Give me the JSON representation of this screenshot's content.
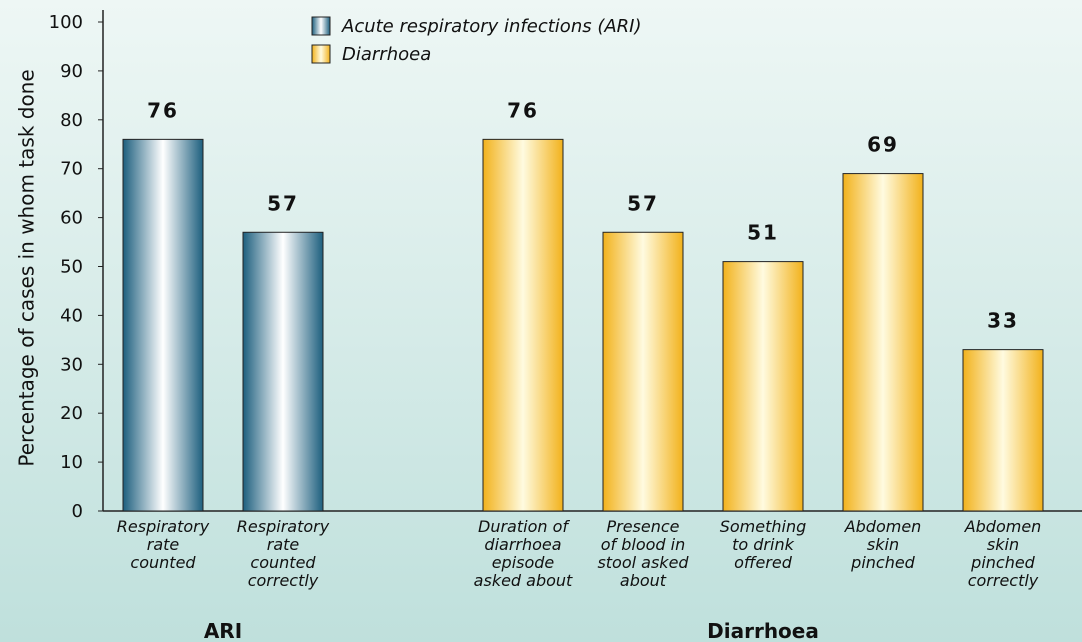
{
  "chart_data": {
    "type": "bar",
    "ylabel": "Percentage of cases in whom task done",
    "categories": [
      "Respiratory\nrate\ncounted",
      "Respiratory\nrate\ncounted\ncorrectly",
      null,
      "Duration of\ndiarrhoea\nepisode\nasked about",
      "Presence\nof blood in\nstool asked\nabout",
      "Something\nto drink\noffered",
      "Abdomen\nskin\npinched",
      "Abdomen\nskin\npinched\ncorrectly"
    ],
    "series": [
      {
        "name": "Acute respiratory infections (ARI)",
        "color": "#1d5f7e",
        "values": [
          76,
          57,
          null,
          null,
          null,
          null,
          null,
          null
        ]
      },
      {
        "name": "Diarrhoea",
        "color": "#f2b21c",
        "values": [
          null,
          null,
          null,
          76,
          57,
          51,
          69,
          33
        ]
      }
    ],
    "groups": [
      "ARI",
      "Diarrhoea"
    ],
    "ylim": [
      0,
      100
    ],
    "yticks": [
      0,
      10,
      20,
      30,
      40,
      50,
      60,
      70,
      80,
      90,
      100
    ],
    "grid": false
  }
}
